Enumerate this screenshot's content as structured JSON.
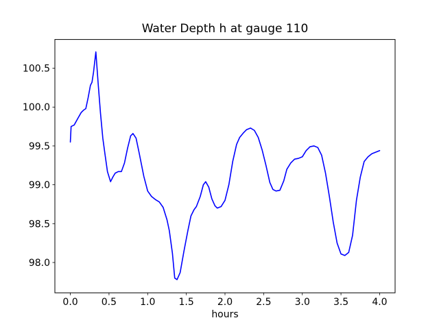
{
  "colors": {
    "background": "#ffffff",
    "line": "#0000ff",
    "axis": "#000000",
    "text": "#000000"
  },
  "chart_data": {
    "type": "line",
    "title": "Water Depth h at gauge 110",
    "xlabel": "hours",
    "ylabel": "",
    "grid": false,
    "legend": "none",
    "xlim": [
      -0.2,
      4.2
    ],
    "ylim": [
      97.61,
      100.87
    ],
    "x_ticks": {
      "values": [
        0.0,
        0.5,
        1.0,
        1.5,
        2.0,
        2.5,
        3.0,
        3.5,
        4.0
      ],
      "labels": [
        "0.0",
        "0.5",
        "1.0",
        "1.5",
        "2.0",
        "2.5",
        "3.0",
        "3.5",
        "4.0"
      ]
    },
    "y_ticks": {
      "values": [
        98.0,
        98.5,
        99.0,
        99.5,
        100.0,
        100.5
      ],
      "labels": [
        "98.0",
        "98.5",
        "99.0",
        "99.5",
        "100.0",
        "100.5"
      ]
    },
    "series": [
      {
        "name": "water-depth-at-gauge-110",
        "color": "#0000ff",
        "x": [
          0.0,
          0.01,
          0.05,
          0.1,
          0.14,
          0.17,
          0.2,
          0.23,
          0.26,
          0.28,
          0.3,
          0.33,
          0.36,
          0.39,
          0.42,
          0.45,
          0.48,
          0.52,
          0.55,
          0.58,
          0.62,
          0.66,
          0.7,
          0.74,
          0.78,
          0.81,
          0.85,
          0.89,
          0.95,
          1.0,
          1.05,
          1.1,
          1.15,
          1.2,
          1.25,
          1.28,
          1.32,
          1.35,
          1.38,
          1.42,
          1.47,
          1.52,
          1.56,
          1.6,
          1.63,
          1.68,
          1.72,
          1.75,
          1.79,
          1.83,
          1.87,
          1.9,
          1.95,
          2.0,
          2.05,
          2.1,
          2.15,
          2.19,
          2.24,
          2.28,
          2.33,
          2.38,
          2.43,
          2.48,
          2.53,
          2.58,
          2.62,
          2.66,
          2.71,
          2.76,
          2.8,
          2.85,
          2.9,
          2.95,
          3.0,
          3.05,
          3.1,
          3.15,
          3.2,
          3.25,
          3.3,
          3.35,
          3.4,
          3.45,
          3.5,
          3.55,
          3.6,
          3.65,
          3.7,
          3.75,
          3.8,
          3.85,
          3.9,
          3.95,
          4.0
        ],
        "y": [
          99.55,
          99.75,
          99.77,
          99.86,
          99.93,
          99.96,
          99.98,
          100.12,
          100.28,
          100.32,
          100.45,
          100.71,
          100.3,
          99.92,
          99.6,
          99.38,
          99.17,
          99.04,
          99.1,
          99.15,
          99.17,
          99.17,
          99.28,
          99.47,
          99.63,
          99.66,
          99.6,
          99.41,
          99.11,
          98.92,
          98.85,
          98.81,
          98.78,
          98.71,
          98.55,
          98.41,
          98.12,
          97.8,
          97.78,
          97.87,
          98.15,
          98.41,
          98.6,
          98.68,
          98.72,
          98.85,
          99.0,
          99.04,
          98.97,
          98.82,
          98.73,
          98.7,
          98.72,
          98.8,
          99.0,
          99.3,
          99.52,
          99.61,
          99.67,
          99.71,
          99.73,
          99.7,
          99.61,
          99.45,
          99.25,
          99.03,
          98.94,
          98.92,
          98.93,
          99.05,
          99.2,
          99.28,
          99.33,
          99.34,
          99.36,
          99.44,
          99.49,
          99.5,
          99.48,
          99.38,
          99.15,
          98.85,
          98.52,
          98.25,
          98.11,
          98.09,
          98.13,
          98.35,
          98.8,
          99.1,
          99.3,
          99.36,
          99.4,
          99.42,
          99.44
        ]
      }
    ]
  }
}
